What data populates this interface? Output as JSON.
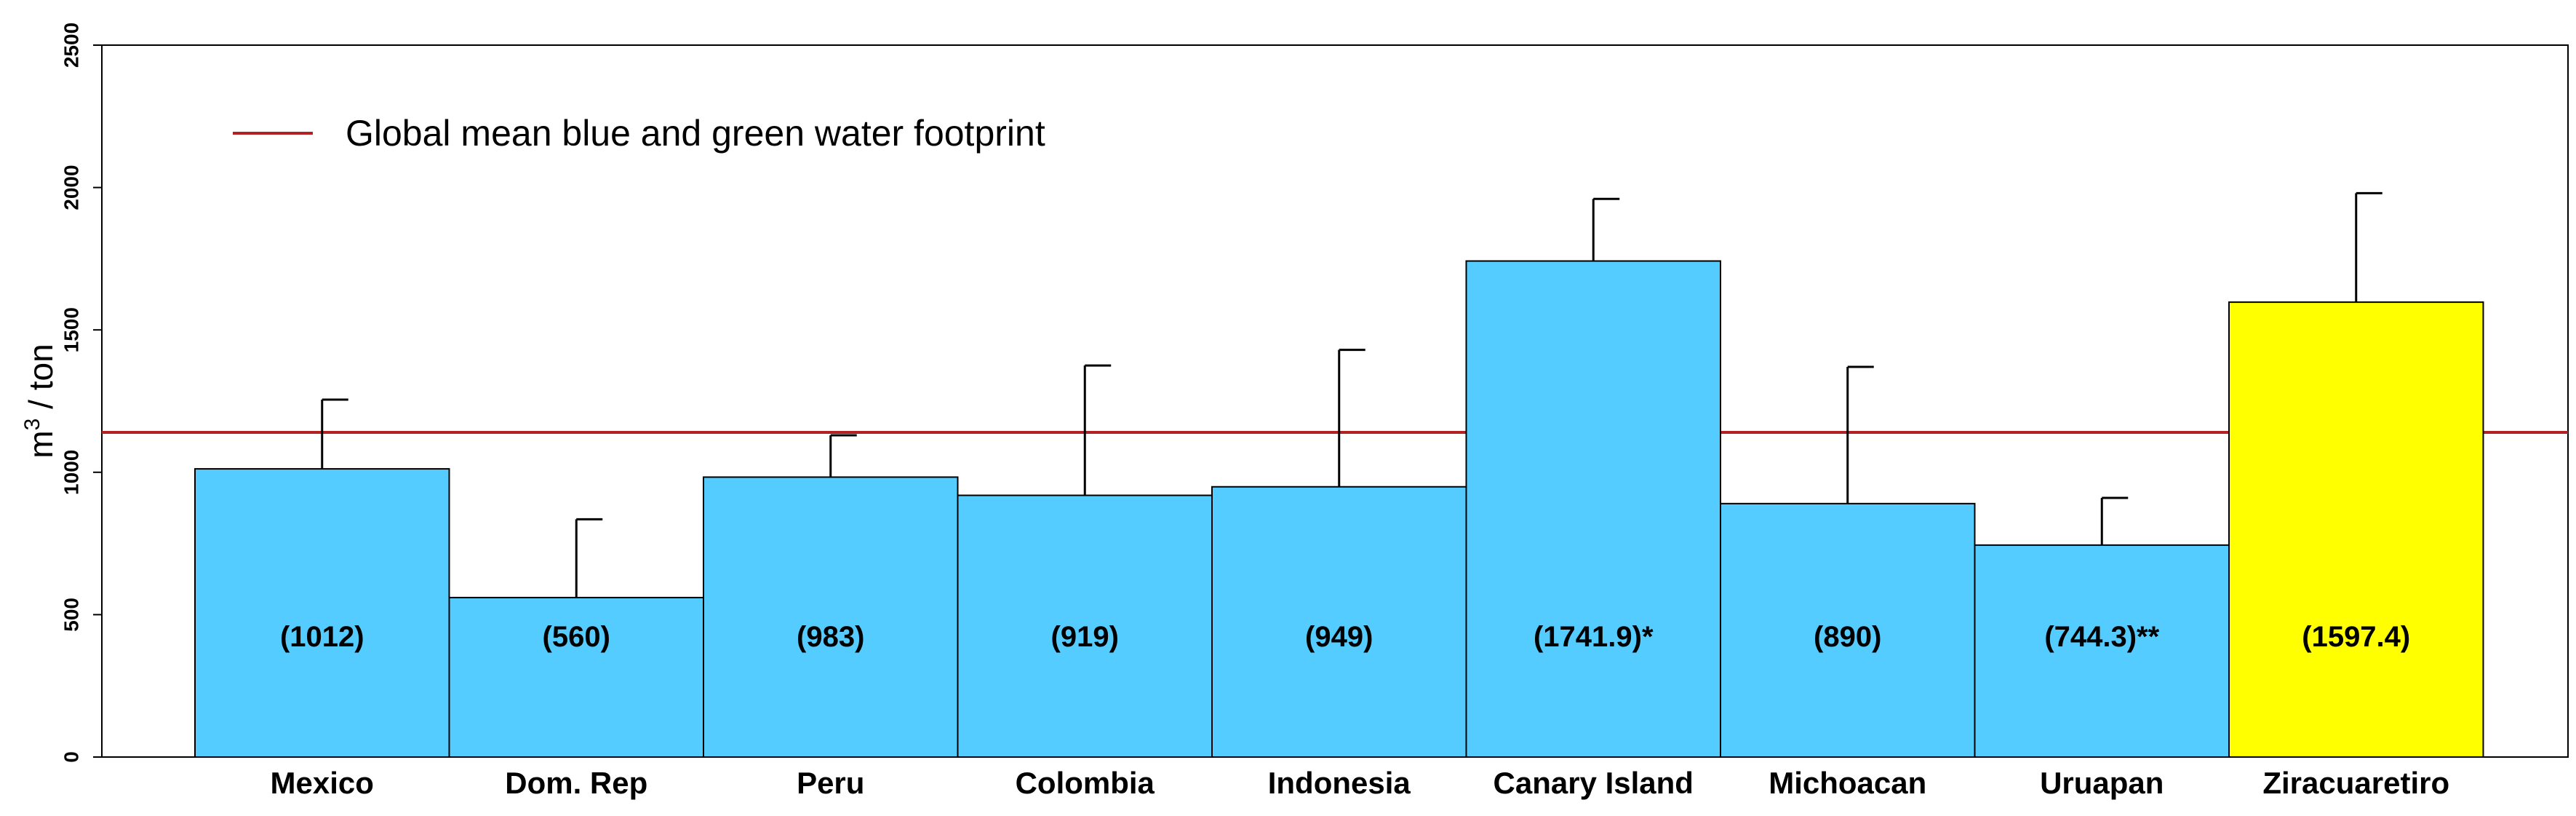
{
  "chart_data": {
    "type": "bar",
    "title": "",
    "xlabel": "",
    "ylabel": "m³ / ton",
    "ylabel_base": "m",
    "ylabel_sup": "3",
    "ylabel_rest": " / ton",
    "ylim": [
      0,
      2500
    ],
    "yticks": [
      0,
      500,
      1000,
      1500,
      2000,
      2500
    ],
    "categories": [
      "Mexico",
      "Dom. Rep",
      "Peru",
      "Colombia",
      "Indonesia",
      "Canary Island",
      "Michoacan",
      "Uruapan",
      "Ziracuaretiro"
    ],
    "values": [
      1012,
      560,
      983,
      919,
      949,
      1741.9,
      890,
      744.3,
      1597.4
    ],
    "error_upper": [
      1255,
      835,
      1130,
      1375,
      1430,
      1960,
      1370,
      910,
      1980
    ],
    "bar_labels": [
      "(1012)",
      "(560)",
      "(983)",
      "(919)",
      "(949)",
      "(1741.9)*",
      "(890)",
      "(744.3)**",
      "(1597.4)"
    ],
    "bar_colors": [
      "#55CCFF",
      "#55CCFF",
      "#55CCFF",
      "#55CCFF",
      "#55CCFF",
      "#55CCFF",
      "#55CCFF",
      "#55CCFF",
      "#FFFF00"
    ],
    "reference_line": {
      "value": 1140,
      "color": "#B22222",
      "label": "Global mean blue and green water footprint"
    },
    "legend_position": "top-left",
    "grid": false
  }
}
